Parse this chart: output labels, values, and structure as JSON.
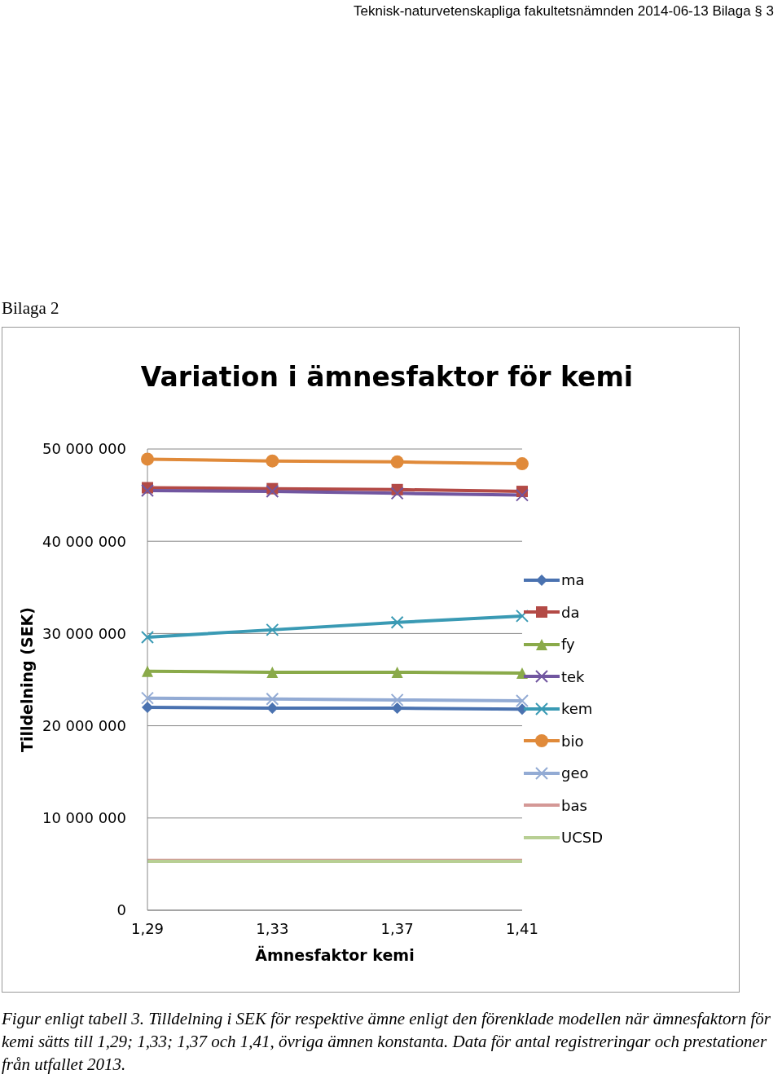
{
  "chart_data": {
    "type": "line",
    "title": "Variation i ämnesfaktor för kemi",
    "xlabel": "Ämnesfaktor kemi",
    "ylabel": "Tilldelning (SEK)",
    "annotations": [
      "Teknisk-naturvetenskapliga fakultetsnämnden 2014-06-13 Bilaga § 3",
      "Bilaga 2",
      "Figur enligt tabell 3. Tilldelning i SEK för respektive ämne enligt den förenklade modellen när ämnesfaktorn för kemi sätts till 1,29; 1,33; 1,37 och 1,41, övriga ämnen konstanta. Data för antal registreringar och prestationer från utfallet 2013."
    ],
    "categories": [
      "1,29",
      "1,33",
      "1,37",
      "1,41"
    ],
    "series": [
      {
        "name": "ma",
        "color": "#4a72b0",
        "marker": "diamond",
        "values": [
          22000000,
          21900000,
          21900000,
          21800000
        ]
      },
      {
        "name": "da",
        "color": "#b34a46",
        "marker": "square",
        "values": [
          45800000,
          45700000,
          45600000,
          45400000
        ]
      },
      {
        "name": "fy",
        "color": "#8aaa4a",
        "marker": "triangle",
        "values": [
          25900000,
          25800000,
          25800000,
          25700000
        ]
      },
      {
        "name": "tek",
        "color": "#7156a0",
        "marker": "cross",
        "values": [
          45500000,
          45400000,
          45200000,
          45000000
        ]
      },
      {
        "name": "kem",
        "color": "#3a9ab4",
        "marker": "cross",
        "values": [
          29600000,
          30400000,
          31200000,
          31900000
        ]
      },
      {
        "name": "bio",
        "color": "#e08a3a",
        "marker": "circle",
        "values": [
          48900000,
          48700000,
          48600000,
          48400000
        ]
      },
      {
        "name": "geo",
        "color": "#93abd4",
        "marker": "cross",
        "values": [
          23000000,
          22900000,
          22800000,
          22700000
        ]
      },
      {
        "name": "bas",
        "color": "#d49896",
        "marker": "none",
        "values": [
          5400000,
          5400000,
          5400000,
          5400000
        ]
      },
      {
        "name": "UCSD",
        "color": "#b8cf94",
        "marker": "none",
        "values": [
          5300000,
          5300000,
          5300000,
          5300000
        ]
      }
    ],
    "ylim": [
      0,
      50000000
    ],
    "yticks": [
      {
        "value": 0,
        "label": "0"
      },
      {
        "value": 10000000,
        "label": "10 000 000"
      },
      {
        "value": 20000000,
        "label": "20 000 000"
      },
      {
        "value": 30000000,
        "label": "30 000 000"
      },
      {
        "value": 40000000,
        "label": "40 000 000"
      },
      {
        "value": 50000000,
        "label": "50 000 000"
      }
    ],
    "grid": "y",
    "legend": "right",
    "line_style": "solid"
  }
}
